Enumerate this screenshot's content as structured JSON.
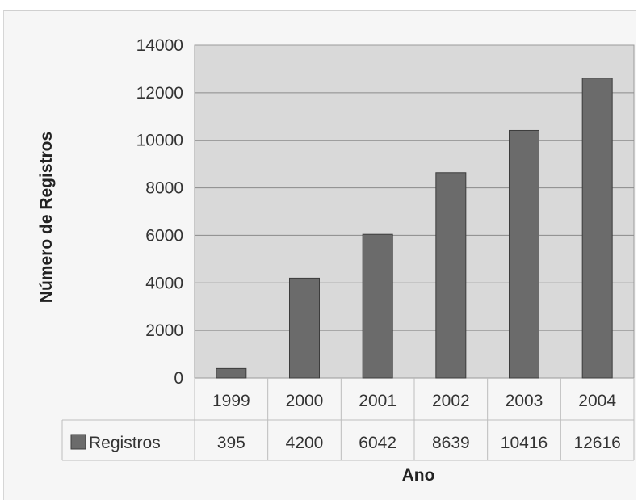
{
  "chart_data": {
    "type": "bar",
    "categories": [
      "1999",
      "2000",
      "2001",
      "2002",
      "2003",
      "2004"
    ],
    "series": [
      {
        "name": "Registros",
        "values": [
          395,
          4200,
          6042,
          8639,
          10416,
          12616
        ]
      }
    ],
    "table_values": [
      "395",
      "4200",
      "6042",
      "8639",
      "10416",
      "12616"
    ],
    "xlabel": "Ano",
    "ylabel": "Número de Registros",
    "ylim": [
      0,
      14000
    ],
    "yticks": [
      0,
      2000,
      4000,
      6000,
      8000,
      10000,
      12000,
      14000
    ],
    "ytick_labels": [
      "0",
      "2000",
      "4000",
      "6000",
      "8000",
      "10000",
      "12000",
      "14000"
    ],
    "grid": true,
    "legend_position": "data-table-left",
    "colors": {
      "bar": "#6b6b6b",
      "bar_edge": "#3c3c3c",
      "plot_bg": "#d9d9d9",
      "grid": "#8a8a8a"
    }
  }
}
